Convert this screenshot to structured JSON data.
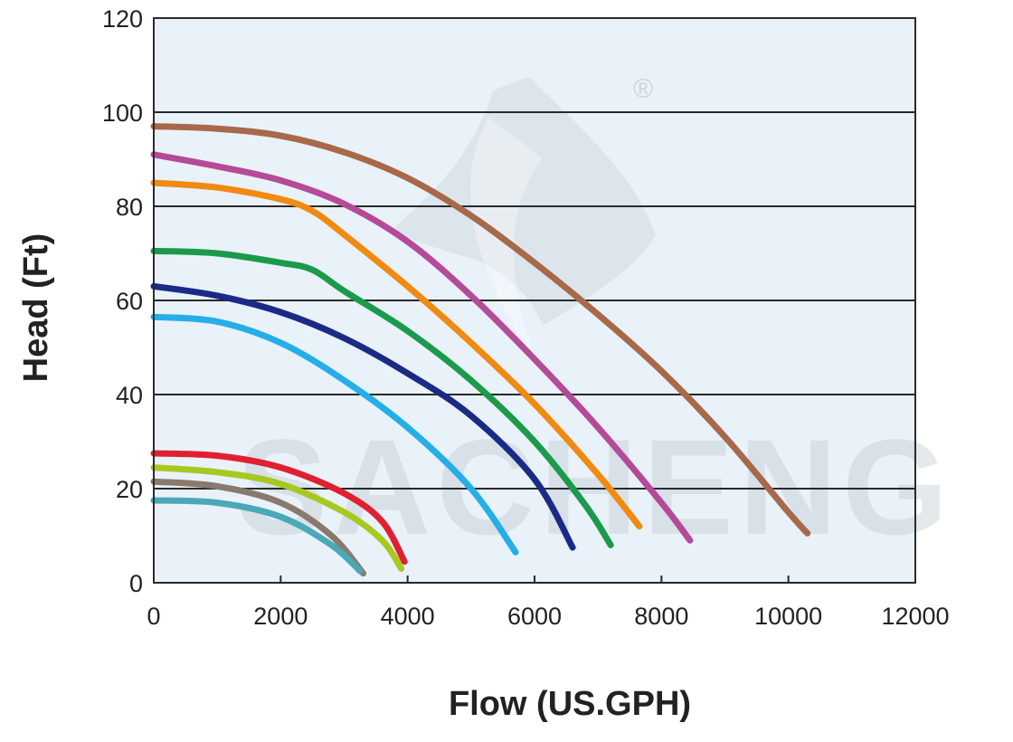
{
  "chart_data": {
    "type": "line",
    "title": "",
    "xlabel": "Flow (US.GPH)",
    "ylabel": "Head (Ft)",
    "xlim": [
      0,
      12000
    ],
    "ylim": [
      0,
      120
    ],
    "x_ticks": [
      "0",
      "2000",
      "4000",
      "6000",
      "8000",
      "10000",
      "12000"
    ],
    "y_ticks": [
      "0",
      "20",
      "40",
      "60",
      "80",
      "100",
      "120"
    ],
    "grid": "horizontal",
    "legend": "none",
    "watermark": {
      "text": "SACHENG",
      "mark": "®"
    },
    "series": [
      {
        "color": "#a8684a",
        "points": [
          [
            0,
            97
          ],
          [
            1000,
            96.5
          ],
          [
            2000,
            95
          ],
          [
            3000,
            91.5
          ],
          [
            4000,
            86
          ],
          [
            5000,
            78
          ],
          [
            6000,
            68
          ],
          [
            7000,
            57
          ],
          [
            8000,
            45
          ],
          [
            9000,
            31
          ],
          [
            10000,
            15
          ],
          [
            10300,
            10.5
          ]
        ]
      },
      {
        "color": "#b54a98",
        "points": [
          [
            0,
            91
          ],
          [
            1000,
            88.5
          ],
          [
            2000,
            85.5
          ],
          [
            3000,
            80.5
          ],
          [
            4000,
            72.5
          ],
          [
            5000,
            61
          ],
          [
            6000,
            47.5
          ],
          [
            7000,
            33
          ],
          [
            8000,
            17
          ],
          [
            8450,
            9
          ]
        ]
      },
      {
        "color": "#f08a10",
        "points": [
          [
            0,
            85
          ],
          [
            1000,
            84
          ],
          [
            2000,
            81.5
          ],
          [
            2500,
            79
          ],
          [
            3000,
            74
          ],
          [
            4000,
            63
          ],
          [
            5000,
            51
          ],
          [
            6000,
            38
          ],
          [
            7000,
            23
          ],
          [
            7650,
            12
          ]
        ]
      },
      {
        "color": "#1c9a4b",
        "points": [
          [
            0,
            70.5
          ],
          [
            1000,
            70
          ],
          [
            2000,
            68
          ],
          [
            2500,
            66.5
          ],
          [
            3000,
            62
          ],
          [
            4000,
            53.5
          ],
          [
            5000,
            43
          ],
          [
            6000,
            30
          ],
          [
            6800,
            16.5
          ],
          [
            7200,
            8
          ]
        ]
      },
      {
        "color": "#1b2a85",
        "points": [
          [
            0,
            63
          ],
          [
            1000,
            61
          ],
          [
            2000,
            57.5
          ],
          [
            3000,
            52
          ],
          [
            4000,
            44.5
          ],
          [
            5000,
            35.5
          ],
          [
            6000,
            22
          ],
          [
            6600,
            7.5
          ]
        ]
      },
      {
        "color": "#25aee8",
        "points": [
          [
            0,
            56.5
          ],
          [
            1000,
            55.5
          ],
          [
            2000,
            51
          ],
          [
            3000,
            43
          ],
          [
            4000,
            33
          ],
          [
            5000,
            20
          ],
          [
            5700,
            6.5
          ]
        ]
      },
      {
        "color": "#e02030",
        "points": [
          [
            0,
            27.5
          ],
          [
            1000,
            27
          ],
          [
            2000,
            24.5
          ],
          [
            3000,
            19
          ],
          [
            3600,
            13
          ],
          [
            3950,
            4.5
          ]
        ]
      },
      {
        "color": "#a8c81e",
        "points": [
          [
            0,
            24.5
          ],
          [
            1000,
            23.5
          ],
          [
            2000,
            21
          ],
          [
            3000,
            15
          ],
          [
            3600,
            9
          ],
          [
            3900,
            3
          ]
        ]
      },
      {
        "color": "#8a7a6e",
        "points": [
          [
            0,
            21.5
          ],
          [
            1000,
            20.5
          ],
          [
            2000,
            17
          ],
          [
            2800,
            10
          ],
          [
            3300,
            2
          ]
        ]
      },
      {
        "color": "#4aa8b8",
        "points": [
          [
            0,
            17.5
          ],
          [
            1000,
            17
          ],
          [
            2000,
            14
          ],
          [
            2800,
            8
          ],
          [
            3250,
            2.5
          ]
        ]
      }
    ]
  }
}
